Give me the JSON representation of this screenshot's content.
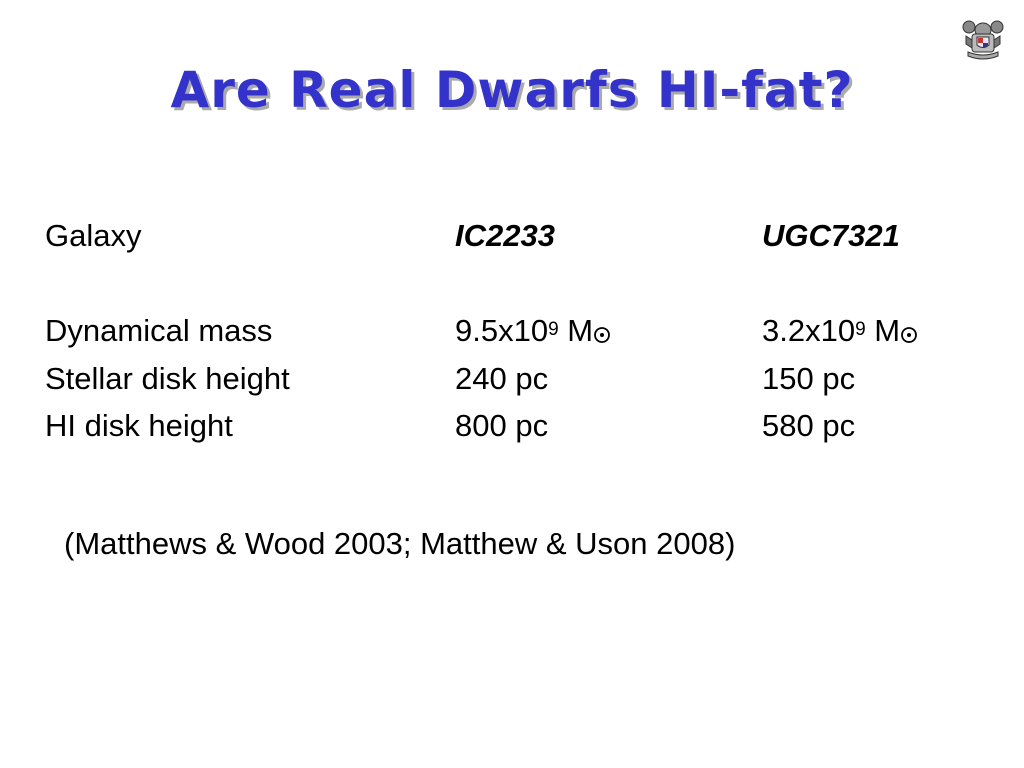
{
  "slide": {
    "title": "Are Real Dwarfs HI-fat?",
    "logo_icon": "institution-crest-icon"
  },
  "table": {
    "header": {
      "label": "Galaxy",
      "galaxy_1": "IC2233",
      "galaxy_2": "UGC7321"
    },
    "rows": [
      {
        "label": "Dynamical mass",
        "galaxy_1": {
          "value": "9.5x10",
          "exponent": "9",
          "unit": " M",
          "unit_symbol": "solar-mass-symbol"
        },
        "galaxy_2": {
          "value": "3.2x10",
          "exponent": "9",
          "unit": " M",
          "unit_symbol": "solar-mass-symbol"
        }
      },
      {
        "label": "Stellar disk height",
        "galaxy_1": "240 pc",
        "galaxy_2": "150 pc"
      },
      {
        "label": "HI disk height",
        "galaxy_1": "800 pc",
        "galaxy_2": "580 pc"
      }
    ]
  },
  "reference": "(Matthews & Wood 2003; Matthew & Uson 2008)",
  "colors": {
    "title": "#3333cc",
    "title_shadow": "#aaaaaa",
    "text": "#000000",
    "background": "#ffffff"
  }
}
